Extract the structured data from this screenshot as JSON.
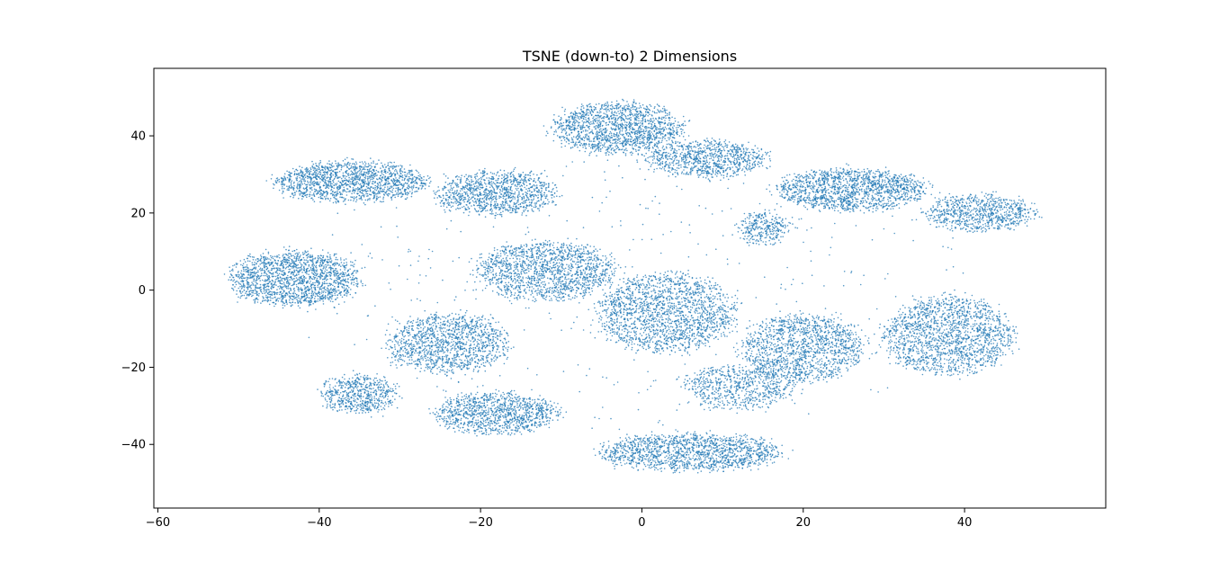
{
  "chart_data": {
    "type": "scatter",
    "title": "TSNE (down-to) 2 Dimensions",
    "xlabel": "",
    "ylabel": "",
    "xlim": [
      -60.5,
      57.5
    ],
    "ylim": [
      -56.5,
      57.5
    ],
    "x_ticks": [
      -60,
      -40,
      -20,
      0,
      20,
      40
    ],
    "x_tick_labels": [
      "−60",
      "−40",
      "−20",
      "0",
      "20",
      "40"
    ],
    "y_ticks": [
      -40,
      -20,
      0,
      20,
      40
    ],
    "y_tick_labels": [
      "−40",
      "−20",
      "0",
      "20",
      "40"
    ],
    "grid": false,
    "legend": "none",
    "marker_color": "#1f77b4",
    "clusters": [
      {
        "center": [
          -3,
          42
        ],
        "spread": [
          8.5,
          7.0
        ],
        "count": 1500
      },
      {
        "center": [
          8,
          34
        ],
        "spread": [
          8.0,
          5.0
        ],
        "count": 900
      },
      {
        "center": [
          -36,
          28
        ],
        "spread": [
          10.0,
          5.5
        ],
        "count": 1500
      },
      {
        "center": [
          -18,
          25
        ],
        "spread": [
          8.0,
          6.0
        ],
        "count": 1100
      },
      {
        "center": [
          26,
          26
        ],
        "spread": [
          10.0,
          5.5
        ],
        "count": 1500
      },
      {
        "center": [
          42,
          20
        ],
        "spread": [
          7.0,
          5.0
        ],
        "count": 800
      },
      {
        "center": [
          15,
          16
        ],
        "spread": [
          3.0,
          4.0
        ],
        "count": 300
      },
      {
        "center": [
          -43,
          3
        ],
        "spread": [
          8.5,
          7.5
        ],
        "count": 1700
      },
      {
        "center": [
          -12,
          5
        ],
        "spread": [
          9.0,
          8.0
        ],
        "count": 1500
      },
      {
        "center": [
          3,
          -6
        ],
        "spread": [
          9.0,
          11.0
        ],
        "count": 1800
      },
      {
        "center": [
          38,
          -12
        ],
        "spread": [
          8.5,
          11.0
        ],
        "count": 1700
      },
      {
        "center": [
          -24,
          -14
        ],
        "spread": [
          8.0,
          8.0
        ],
        "count": 1300
      },
      {
        "center": [
          20,
          -15
        ],
        "spread": [
          8.0,
          9.0
        ],
        "count": 1400
      },
      {
        "center": [
          -18,
          -32
        ],
        "spread": [
          8.0,
          5.5
        ],
        "count": 1100
      },
      {
        "center": [
          -35,
          -27
        ],
        "spread": [
          5.0,
          5.0
        ],
        "count": 600
      },
      {
        "center": [
          6,
          -42
        ],
        "spread": [
          12.0,
          5.0
        ],
        "count": 1500
      },
      {
        "center": [
          12,
          -25
        ],
        "spread": [
          7.0,
          6.0
        ],
        "count": 700
      },
      {
        "center": [
          0,
          0
        ],
        "spread": [
          45.0,
          40.0
        ],
        "count": 500
      }
    ]
  }
}
